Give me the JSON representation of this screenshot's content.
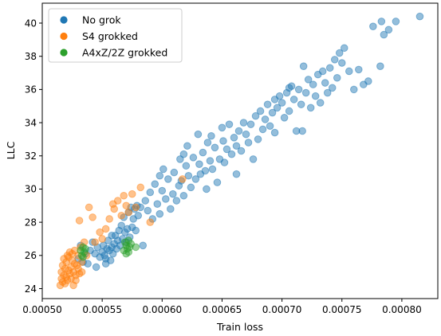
{
  "chart_data": {
    "type": "scatter",
    "xlabel": "Train loss",
    "ylabel": "LLC",
    "xlim": [
      0.0005,
      0.00083
    ],
    "ylim": [
      23.4,
      41.2
    ],
    "xticks": [
      0.0005,
      0.00055,
      0.0006,
      0.00065,
      0.0007,
      0.00075,
      0.0008
    ],
    "xtick_labels": [
      "0.00050",
      "0.00055",
      "0.00060",
      "0.00065",
      "0.00070",
      "0.00075",
      "0.00080"
    ],
    "yticks": [
      24,
      26,
      28,
      30,
      32,
      34,
      36,
      38,
      40
    ],
    "ytick_labels": [
      "24",
      "26",
      "28",
      "30",
      "32",
      "34",
      "36",
      "38",
      "40"
    ],
    "grid": false,
    "legend_position": "top-left",
    "series": [
      {
        "name": "No grok",
        "color": "#1f77b4",
        "points": [
          [
            0.00053,
            25.8
          ],
          [
            0.000532,
            26.6
          ],
          [
            0.000534,
            25.6
          ],
          [
            0.000536,
            26.1
          ],
          [
            0.000538,
            25.5
          ],
          [
            0.00054,
            26.3
          ],
          [
            0.000542,
            26.8
          ],
          [
            0.000544,
            26.1
          ],
          [
            0.000546,
            26.5
          ],
          [
            0.000548,
            25.9
          ],
          [
            0.00055,
            26.2
          ],
          [
            0.000551,
            26.6
          ],
          [
            0.000552,
            26.0
          ],
          [
            0.000553,
            25.8
          ],
          [
            0.000554,
            26.4
          ],
          [
            0.000555,
            26.9
          ],
          [
            0.000556,
            26.3
          ],
          [
            0.000557,
            25.7
          ],
          [
            0.000558,
            26.5
          ],
          [
            0.000559,
            26.1
          ],
          [
            0.00056,
            26.7
          ],
          [
            0.000561,
            27.2
          ],
          [
            0.000562,
            26.4
          ],
          [
            0.000563,
            26.9
          ],
          [
            0.000564,
            27.5
          ],
          [
            0.000565,
            26.6
          ],
          [
            0.000566,
            27.8
          ],
          [
            0.000567,
            27.0
          ],
          [
            0.000568,
            28.3
          ],
          [
            0.000569,
            27.4
          ],
          [
            0.00057,
            26.8
          ],
          [
            0.000571,
            27.6
          ],
          [
            0.000572,
            28.6
          ],
          [
            0.000573,
            27.1
          ],
          [
            0.000574,
            28.9
          ],
          [
            0.000575,
            27.7
          ],
          [
            0.000576,
            28.2
          ],
          [
            0.000577,
            28.8
          ],
          [
            0.000578,
            27.5
          ],
          [
            0.000579,
            29.0
          ],
          [
            0.00058,
            28.4
          ],
          [
            0.000582,
            28.9
          ],
          [
            0.000584,
            26.6
          ],
          [
            0.000586,
            29.3
          ],
          [
            0.000588,
            28.7
          ],
          [
            0.00059,
            29.8
          ],
          [
            0.000592,
            28.2
          ],
          [
            0.000594,
            30.3
          ],
          [
            0.000596,
            29.1
          ],
          [
            0.000598,
            28.5
          ],
          [
            0.0006,
            29.9
          ],
          [
            0.000601,
            31.2
          ],
          [
            0.000603,
            29.4
          ],
          [
            0.000605,
            30.6
          ],
          [
            0.000607,
            28.8
          ],
          [
            0.000609,
            29.7
          ],
          [
            0.00061,
            31.0
          ],
          [
            0.000612,
            29.3
          ],
          [
            0.000614,
            30.2
          ],
          [
            0.000615,
            31.8
          ],
          [
            0.000616,
            30.5
          ],
          [
            0.000618,
            29.6
          ],
          [
            0.00062,
            31.4
          ],
          [
            0.000621,
            32.6
          ],
          [
            0.000622,
            30.8
          ],
          [
            0.000624,
            30.1
          ],
          [
            0.000626,
            31.9
          ],
          [
            0.000628,
            30.6
          ],
          [
            0.00063,
            33.3
          ],
          [
            0.000631,
            31.5
          ],
          [
            0.000632,
            30.9
          ],
          [
            0.000634,
            32.2
          ],
          [
            0.000636,
            31.1
          ],
          [
            0.000638,
            32.8
          ],
          [
            0.00064,
            31.7
          ],
          [
            0.000641,
            33.2
          ],
          [
            0.000642,
            31.2
          ],
          [
            0.000644,
            32.5
          ],
          [
            0.000646,
            30.4
          ],
          [
            0.000648,
            31.8
          ],
          [
            0.00065,
            33.7
          ],
          [
            0.000651,
            32.9
          ],
          [
            0.000652,
            31.6
          ],
          [
            0.000654,
            32.4
          ],
          [
            0.000656,
            33.9
          ],
          [
            0.000658,
            32.1
          ],
          [
            0.00066,
            33.1
          ],
          [
            0.000662,
            32.6
          ],
          [
            0.000664,
            33.5
          ],
          [
            0.000666,
            32.3
          ],
          [
            0.000668,
            34.0
          ],
          [
            0.00067,
            33.3
          ],
          [
            0.000672,
            32.8
          ],
          [
            0.000674,
            33.9
          ],
          [
            0.000676,
            31.8
          ],
          [
            0.000678,
            34.4
          ],
          [
            0.00068,
            33.0
          ],
          [
            0.000682,
            34.7
          ],
          [
            0.000684,
            33.6
          ],
          [
            0.000686,
            34.2
          ],
          [
            0.000688,
            35.1
          ],
          [
            0.00069,
            33.8
          ],
          [
            0.000692,
            34.6
          ],
          [
            0.000694,
            35.4
          ],
          [
            0.000696,
            34.9
          ],
          [
            0.000698,
            35.6
          ],
          [
            0.0007,
            35.2
          ],
          [
            0.000702,
            34.3
          ],
          [
            0.000704,
            35.8
          ],
          [
            0.000706,
            34.7
          ],
          [
            0.000708,
            36.2
          ],
          [
            0.00071,
            35.4
          ],
          [
            0.000712,
            33.5
          ],
          [
            0.000714,
            36.0
          ],
          [
            0.000716,
            35.1
          ],
          [
            0.000718,
            37.4
          ],
          [
            0.00072,
            35.8
          ],
          [
            0.000722,
            36.6
          ],
          [
            0.000724,
            34.9
          ],
          [
            0.000726,
            36.3
          ],
          [
            0.000728,
            35.6
          ],
          [
            0.00073,
            36.9
          ],
          [
            0.000732,
            35.2
          ],
          [
            0.000734,
            37.1
          ],
          [
            0.000736,
            36.4
          ],
          [
            0.000738,
            35.8
          ],
          [
            0.00074,
            37.3
          ],
          [
            0.000742,
            36.1
          ],
          [
            0.000744,
            37.8
          ],
          [
            0.000746,
            36.7
          ],
          [
            0.000748,
            38.2
          ],
          [
            0.00075,
            37.6
          ],
          [
            0.000752,
            38.5
          ],
          [
            0.000756,
            37.1
          ],
          [
            0.00076,
            36.0
          ],
          [
            0.000764,
            37.2
          ],
          [
            0.000768,
            36.3
          ],
          [
            0.000772,
            36.5
          ],
          [
            0.000776,
            39.8
          ],
          [
            0.000782,
            37.4
          ],
          [
            0.000783,
            40.1
          ],
          [
            0.000785,
            39.3
          ],
          [
            0.000789,
            39.6
          ],
          [
            0.000795,
            40.1
          ],
          [
            0.000815,
            40.4
          ],
          [
            0.000545,
            25.3
          ],
          [
            0.000553,
            25.5
          ],
          [
            0.000558,
            27.2
          ],
          [
            0.000598,
            30.8
          ],
          [
            0.000618,
            32.1
          ],
          [
            0.000637,
            30.0
          ],
          [
            0.000662,
            30.9
          ],
          [
            0.000694,
            33.4
          ],
          [
            0.000706,
            36.1
          ],
          [
            0.000717,
            33.5
          ]
        ]
      },
      {
        "name": "S4 grokked",
        "color": "#ff7f0e",
        "points": [
          [
            0.000515,
            24.2
          ],
          [
            0.000516,
            24.6
          ],
          [
            0.000516,
            25.0
          ],
          [
            0.000517,
            24.4
          ],
          [
            0.000517,
            25.4
          ],
          [
            0.000518,
            24.8
          ],
          [
            0.000518,
            25.8
          ],
          [
            0.000519,
            24.3
          ],
          [
            0.000519,
            25.2
          ],
          [
            0.00052,
            24.7
          ],
          [
            0.00052,
            25.6
          ],
          [
            0.000521,
            26.0
          ],
          [
            0.000521,
            24.5
          ],
          [
            0.000522,
            25.1
          ],
          [
            0.000522,
            25.9
          ],
          [
            0.000523,
            24.9
          ],
          [
            0.000523,
            26.2
          ],
          [
            0.000524,
            25.3
          ],
          [
            0.000524,
            24.6
          ],
          [
            0.000525,
            25.7
          ],
          [
            0.000525,
            26.1
          ],
          [
            0.000526,
            25.0
          ],
          [
            0.000527,
            25.5
          ],
          [
            0.000527,
            26.3
          ],
          [
            0.000528,
            24.8
          ],
          [
            0.000529,
            25.4
          ],
          [
            0.00053,
            26.0
          ],
          [
            0.00053,
            25.2
          ],
          [
            0.000531,
            24.9
          ],
          [
            0.000532,
            26.5
          ],
          [
            0.000533,
            25.6
          ],
          [
            0.000535,
            26.8
          ],
          [
            0.000531,
            28.1
          ],
          [
            0.000537,
            26.0
          ],
          [
            0.000539,
            28.9
          ],
          [
            0.000542,
            28.3
          ],
          [
            0.000544,
            26.8
          ],
          [
            0.000548,
            27.4
          ],
          [
            0.00055,
            27.0
          ],
          [
            0.000553,
            27.6
          ],
          [
            0.000556,
            28.2
          ],
          [
            0.000559,
            29.1
          ],
          [
            0.00056,
            28.8
          ],
          [
            0.000563,
            29.3
          ],
          [
            0.000566,
            28.4
          ],
          [
            0.000568,
            29.6
          ],
          [
            0.00057,
            29.0
          ],
          [
            0.000572,
            28.6
          ],
          [
            0.000575,
            29.7
          ],
          [
            0.000578,
            28.9
          ],
          [
            0.000582,
            30.1
          ],
          [
            0.00059,
            28.0
          ],
          [
            0.000617,
            30.6
          ],
          [
            0.000528,
            24.5
          ],
          [
            0.000526,
            24.2
          ],
          [
            0.000533,
            25.0
          ]
        ]
      },
      {
        "name": "A4xZ/2Z grokked",
        "color": "#2ca02c",
        "points": [
          [
            0.000532,
            26.3
          ],
          [
            0.000533,
            26.0
          ],
          [
            0.000534,
            26.5
          ],
          [
            0.000534,
            25.9
          ],
          [
            0.000535,
            26.2
          ],
          [
            0.000536,
            26.4
          ],
          [
            0.000568,
            26.3
          ],
          [
            0.000569,
            26.8
          ],
          [
            0.00057,
            26.1
          ],
          [
            0.00057,
            26.6
          ],
          [
            0.000571,
            26.4
          ],
          [
            0.000572,
            26.9
          ],
          [
            0.000572,
            26.2
          ],
          [
            0.000573,
            26.5
          ],
          [
            0.000574,
            26.7
          ],
          [
            0.000578,
            26.5
          ]
        ]
      }
    ]
  }
}
